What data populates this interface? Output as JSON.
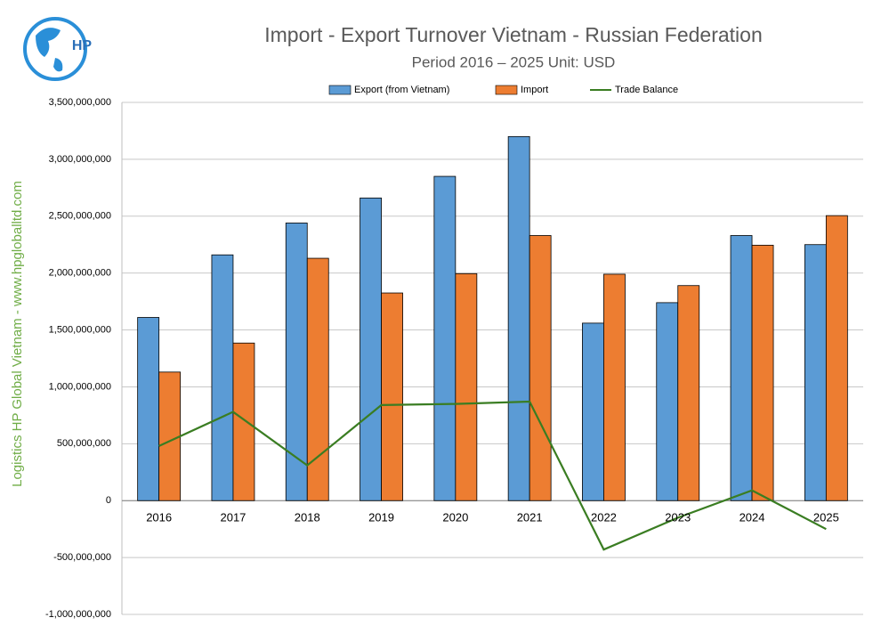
{
  "logo_text": "HP",
  "side_text": "Logistics HP Global Vietnam - www.hpgloballtd.com",
  "chart_data": {
    "type": "bar",
    "title": "Import - Export Turnover Vietnam - Russian Federation",
    "subtitle": "Period 2016 – 2025  Unit: USD",
    "categories": [
      "2016",
      "2017",
      "2018",
      "2019",
      "2020",
      "2021",
      "2022",
      "2023",
      "2024",
      "2025"
    ],
    "series": [
      {
        "name": "Export (from Vietnam)",
        "type": "bar",
        "color": "#5b9bd5",
        "values": [
          1610000000,
          2160000000,
          2440000000,
          2660000000,
          2850000000,
          3200000000,
          1560000000,
          1740000000,
          2330000000,
          2250000000
        ]
      },
      {
        "name": "Import",
        "type": "bar",
        "color": "#ed7d31",
        "values": [
          1130000000,
          1385000000,
          2130000000,
          1825000000,
          1995000000,
          2330000000,
          1990000000,
          1890000000,
          2245000000,
          2505000000
        ]
      },
      {
        "name": "Trade Balance",
        "type": "line",
        "color": "#3a7d22",
        "values": [
          480000000,
          780000000,
          310000000,
          840000000,
          850000000,
          870000000,
          -430000000,
          -150000000,
          90000000,
          -250000000
        ]
      }
    ],
    "ylim": [
      -1000000000,
      3500000000
    ],
    "yticks": [
      {
        "value": -1000000000,
        "label": "-1,000,000,000"
      },
      {
        "value": -500000000,
        "label": "-500,000,000"
      },
      0,
      {
        "value": 500000000,
        "label": "500,000,000"
      },
      {
        "value": 1000000000,
        "label": "1,000,000,000"
      },
      {
        "value": 1500000000,
        "label": "1,500,000,000"
      },
      {
        "value": 2000000000,
        "label": "2,000,000,000"
      },
      {
        "value": 2500000000,
        "label": "2,500,000,000"
      },
      {
        "value": 3000000000,
        "label": "3,000,000,000"
      },
      {
        "value": 3500000000,
        "label": "3,500,000,000"
      }
    ],
    "grid": true,
    "legend": "top"
  }
}
